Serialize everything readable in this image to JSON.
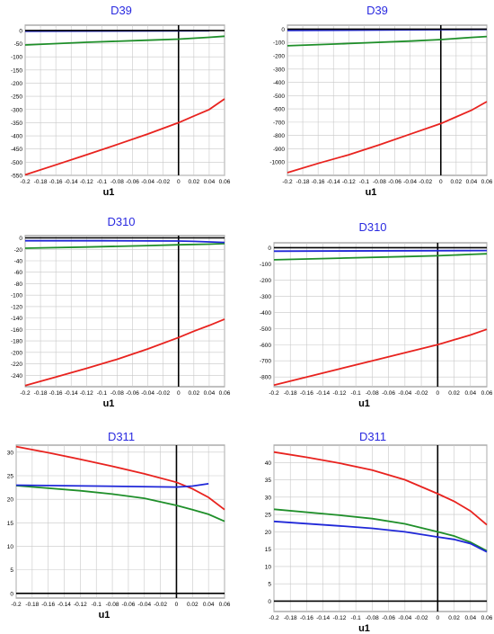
{
  "colors": {
    "red": "#e8231f",
    "green": "#1f8f2a",
    "blue": "#2028d8",
    "black": "#000000",
    "grid": "#c8c8c8",
    "title": "#2a2ae0"
  },
  "chart_data": [
    {
      "type": "line",
      "title": "D39",
      "xlabel": "u1",
      "xlim": [
        -0.2,
        0.06
      ],
      "ylim": [
        -550,
        20
      ],
      "xticks": [
        "-0.2",
        "-0.18",
        "-0.16",
        "-0.14",
        "-0.12",
        "-0.1",
        "-0.08",
        "-0.06",
        "-0.04",
        "-0.02",
        "0",
        "0.02",
        "0.04",
        "0.06"
      ],
      "yticks": [
        0,
        -50,
        -100,
        -150,
        -200,
        -250,
        -300,
        -350,
        -400,
        -450,
        -500,
        -550
      ],
      "series": [
        {
          "color": "red",
          "x": [
            -0.2,
            -0.16,
            -0.12,
            -0.08,
            -0.04,
            0,
            0.02,
            0.04,
            0.06
          ],
          "y": [
            -548,
            -510,
            -472,
            -433,
            -393,
            -350,
            -325,
            -300,
            -260
          ]
        },
        {
          "color": "green",
          "x": [
            -0.2,
            -0.12,
            -0.04,
            0,
            0.04,
            0.06
          ],
          "y": [
            -55,
            -45,
            -37,
            -33,
            -26,
            -22
          ]
        },
        {
          "color": "blue",
          "x": [
            -0.2,
            0.04
          ],
          "y": [
            -3,
            -1
          ]
        },
        {
          "color": "black",
          "x": [
            -0.2,
            0.06
          ],
          "y": [
            0,
            0
          ]
        }
      ]
    },
    {
      "type": "line",
      "title": "D39",
      "xlabel": "u1",
      "xlim": [
        -0.2,
        0.06
      ],
      "ylim": [
        -1100,
        30
      ],
      "xticks": [
        "-0.2",
        "-0.18",
        "-0.16",
        "-0.14",
        "-0.12",
        "-0.1",
        "-0.08",
        "-0.06",
        "-0.04",
        "-0.02",
        "0",
        "0.02",
        "0.04",
        "0.06"
      ],
      "yticks": [
        0,
        -100,
        -200,
        -300,
        -400,
        -500,
        -600,
        -700,
        -800,
        -900,
        -1000
      ],
      "series": [
        {
          "color": "red",
          "x": [
            -0.2,
            -0.16,
            -0.12,
            -0.08,
            -0.04,
            0,
            0.02,
            0.04,
            0.06
          ],
          "y": [
            -1080,
            -1010,
            -945,
            -870,
            -790,
            -710,
            -660,
            -610,
            -545
          ]
        },
        {
          "color": "green",
          "x": [
            -0.2,
            -0.12,
            -0.04,
            0,
            0.04,
            0.06
          ],
          "y": [
            -125,
            -108,
            -90,
            -78,
            -62,
            -55
          ]
        },
        {
          "color": "blue",
          "x": [
            -0.2,
            0.06
          ],
          "y": [
            -10,
            -2
          ]
        },
        {
          "color": "black",
          "x": [
            -0.2,
            0.06
          ],
          "y": [
            0,
            0
          ]
        }
      ]
    },
    {
      "type": "line",
      "title": "D310",
      "xlabel": "u1",
      "xlim": [
        -0.2,
        0.06
      ],
      "ylim": [
        -260,
        4
      ],
      "xticks": [
        "-0.2",
        "-0.18",
        "-0.16",
        "-0.14",
        "-0.12",
        "-0.1",
        "-0.08",
        "-0.06",
        "-0.04",
        "-0.02",
        "0",
        "0.02",
        "0.04",
        "0.06"
      ],
      "yticks": [
        0,
        -20,
        -40,
        -60,
        -80,
        -100,
        -120,
        -140,
        -160,
        -180,
        -200,
        -220,
        -240
      ],
      "series": [
        {
          "color": "red",
          "x": [
            -0.2,
            -0.16,
            -0.12,
            -0.08,
            -0.04,
            0,
            0.02,
            0.04,
            0.06
          ],
          "y": [
            -258,
            -243,
            -228,
            -212,
            -194,
            -174,
            -163,
            -153,
            -142
          ]
        },
        {
          "color": "green",
          "x": [
            -0.2,
            -0.12,
            -0.04,
            0,
            0.04,
            0.06
          ],
          "y": [
            -18,
            -16,
            -13.5,
            -12,
            -11,
            -10
          ]
        },
        {
          "color": "blue",
          "x": [
            -0.2,
            -0.1,
            0,
            0.02,
            0.04,
            0.06
          ],
          "y": [
            -5,
            -5,
            -5.5,
            -6,
            -7,
            -8
          ]
        },
        {
          "color": "black",
          "x": [
            -0.2,
            0.06
          ],
          "y": [
            0,
            0
          ]
        }
      ]
    },
    {
      "type": "line",
      "title": "D310",
      "xlabel": "u1",
      "xlim": [
        -0.2,
        0.06
      ],
      "ylim": [
        -860,
        30
      ],
      "xticks": [
        "-0.2",
        "-0.18",
        "-0.16",
        "-0.14",
        "-0.12",
        "-0.1",
        "-0.08",
        "-0.06",
        "-0.04",
        "-0.02",
        "0",
        "0.02",
        "0.04",
        "0.06"
      ],
      "yticks": [
        0,
        -100,
        -200,
        -300,
        -400,
        -500,
        -600,
        -700,
        -800
      ],
      "series": [
        {
          "color": "red",
          "x": [
            -0.2,
            -0.16,
            -0.12,
            -0.08,
            -0.04,
            0,
            0.02,
            0.04,
            0.06
          ],
          "y": [
            -850,
            -800,
            -750,
            -700,
            -650,
            -600,
            -570,
            -540,
            -505
          ]
        },
        {
          "color": "green",
          "x": [
            -0.2,
            -0.12,
            -0.04,
            0,
            0.04,
            0.06
          ],
          "y": [
            -75,
            -65,
            -55,
            -50,
            -42,
            -38
          ]
        },
        {
          "color": "blue",
          "x": [
            -0.2,
            0.06
          ],
          "y": [
            -22,
            -18
          ]
        },
        {
          "color": "black",
          "x": [
            -0.2,
            0.06
          ],
          "y": [
            0,
            0
          ]
        }
      ]
    },
    {
      "type": "line",
      "title": "D311",
      "xlabel": "u1",
      "xlim": [
        -0.2,
        0.06
      ],
      "ylim": [
        -1,
        31.5
      ],
      "xticks": [
        "-0.2",
        "-0.18",
        "-0.16",
        "-0.14",
        "-0.12",
        "-0.1",
        "-0.08",
        "-0.06",
        "-0.04",
        "-0.02",
        "0",
        "0.02",
        "0.04",
        "0.06"
      ],
      "yticks": [
        0,
        5,
        10,
        15,
        20,
        25,
        30
      ],
      "series": [
        {
          "color": "red",
          "x": [
            -0.2,
            -0.16,
            -0.12,
            -0.08,
            -0.04,
            0,
            0.02,
            0.04,
            0.06
          ],
          "y": [
            31.2,
            29.9,
            28.5,
            27,
            25.4,
            23.6,
            22.2,
            20.4,
            17.8
          ]
        },
        {
          "color": "green",
          "x": [
            -0.2,
            -0.12,
            -0.08,
            -0.04,
            0,
            0.02,
            0.04,
            0.06
          ],
          "y": [
            22.9,
            21.8,
            21.1,
            20.2,
            18.7,
            17.8,
            16.8,
            15.3
          ]
        },
        {
          "color": "blue",
          "x": [
            -0.2,
            -0.1,
            0,
            0.02,
            0.04
          ],
          "y": [
            23,
            22.8,
            22.6,
            22.8,
            23.3
          ]
        },
        {
          "color": "black",
          "x": [
            -0.2,
            0.06
          ],
          "y": [
            0,
            0
          ]
        }
      ]
    },
    {
      "type": "line",
      "title": "D311",
      "xlabel": "u1",
      "xlim": [
        -0.2,
        0.06
      ],
      "ylim": [
        -3,
        45
      ],
      "xticks": [
        "-0.2",
        "-0.18",
        "-0.16",
        "-0.14",
        "-0.12",
        "-0.1",
        "-0.08",
        "-0.06",
        "-0.04",
        "-0.02",
        "0",
        "0.02",
        "0.04",
        "0.06"
      ],
      "yticks": [
        0,
        5,
        10,
        15,
        20,
        25,
        30,
        35,
        40
      ],
      "series": [
        {
          "color": "red",
          "x": [
            -0.2,
            -0.16,
            -0.12,
            -0.08,
            -0.04,
            0,
            0.02,
            0.04,
            0.06
          ],
          "y": [
            43,
            41.5,
            39.8,
            37.8,
            35,
            31,
            28.8,
            26,
            22
          ]
        },
        {
          "color": "green",
          "x": [
            -0.2,
            -0.12,
            -0.08,
            -0.04,
            0,
            0.02,
            0.04,
            0.06
          ],
          "y": [
            26.5,
            24.8,
            23.8,
            22.3,
            20,
            18.8,
            17,
            14.5
          ]
        },
        {
          "color": "blue",
          "x": [
            -0.2,
            -0.12,
            -0.08,
            -0.04,
            0,
            0.02,
            0.04,
            0.06
          ],
          "y": [
            23,
            21.7,
            21,
            20,
            18.5,
            17.8,
            16.6,
            14.2
          ]
        },
        {
          "color": "black",
          "x": [
            -0.2,
            0.06
          ],
          "y": [
            0,
            0
          ]
        }
      ]
    }
  ]
}
